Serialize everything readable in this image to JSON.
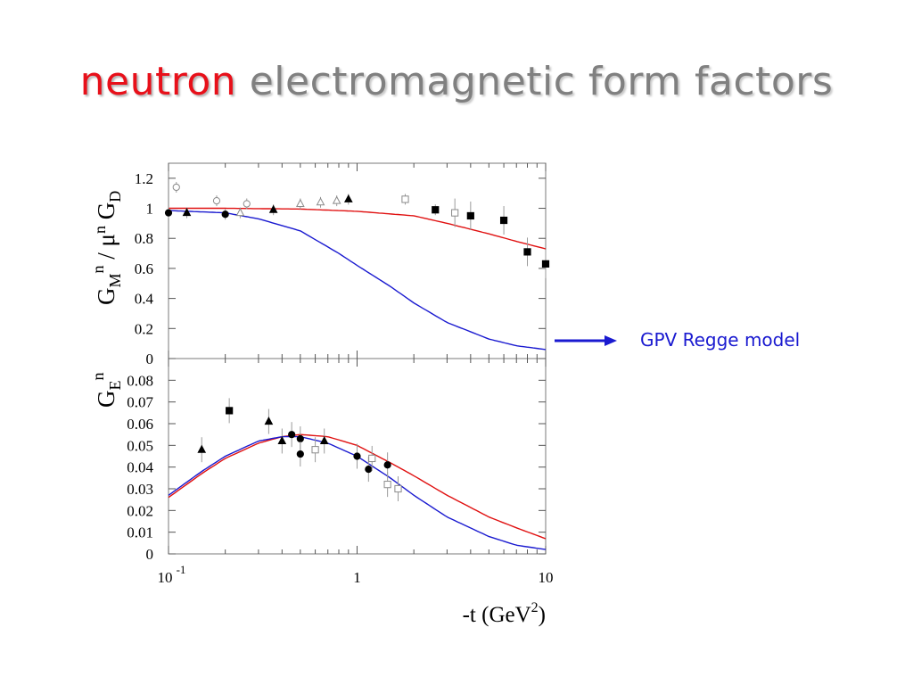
{
  "slide": {
    "title_word1": "neutron",
    "title_rest": "electromagnetic form factors",
    "legend_label": "GPV Regge model"
  },
  "colors": {
    "regge_red": "#e01010",
    "regge_blue": "#1a1ad0"
  },
  "chart_data": [
    {
      "type": "scatter",
      "panel": "top",
      "ylabel": "G_M^n / μ^n G_D",
      "xscale": "log",
      "xlim": [
        0.1,
        10
      ],
      "ylim": [
        0,
        1.3
      ],
      "yticks": [
        "0",
        "0.2",
        "0.4",
        "0.6",
        "0.8",
        "1",
        "1.2"
      ],
      "series": [
        {
          "marker": "filled-circle",
          "points": [
            [
              0.1,
              0.97
            ],
            [
              0.2,
              0.96
            ]
          ]
        },
        {
          "marker": "filled-triangle",
          "points": [
            [
              0.125,
              0.97
            ],
            [
              0.36,
              0.99
            ],
            [
              0.9,
              1.06
            ]
          ]
        },
        {
          "marker": "open-triangle",
          "points": [
            [
              0.24,
              0.97
            ],
            [
              0.5,
              1.03
            ],
            [
              0.64,
              1.04
            ],
            [
              0.78,
              1.05
            ]
          ]
        },
        {
          "marker": "open-circle",
          "points": [
            [
              0.11,
              1.14
            ],
            [
              0.18,
              1.05
            ],
            [
              0.26,
              1.03
            ]
          ]
        },
        {
          "marker": "open-square",
          "points": [
            [
              1.8,
              1.06
            ],
            [
              3.3,
              0.97
            ]
          ]
        },
        {
          "marker": "filled-square",
          "points": [
            [
              2.6,
              0.99
            ],
            [
              4.0,
              0.95
            ],
            [
              6.0,
              0.92
            ],
            [
              8.0,
              0.71
            ],
            [
              10.0,
              0.63
            ]
          ]
        }
      ],
      "curves": [
        {
          "color": "red",
          "points": [
            [
              0.1,
              1.0
            ],
            [
              0.2,
              1.0
            ],
            [
              0.5,
              0.995
            ],
            [
              1.0,
              0.98
            ],
            [
              2.0,
              0.95
            ],
            [
              3.0,
              0.9
            ],
            [
              5.0,
              0.83
            ],
            [
              7.0,
              0.78
            ],
            [
              10.0,
              0.73
            ]
          ]
        },
        {
          "color": "blue",
          "points": [
            [
              0.1,
              0.985
            ],
            [
              0.2,
              0.97
            ],
            [
              0.3,
              0.93
            ],
            [
              0.5,
              0.85
            ],
            [
              0.8,
              0.7
            ],
            [
              1.0,
              0.62
            ],
            [
              1.5,
              0.48
            ],
            [
              2.0,
              0.37
            ],
            [
              3.0,
              0.24
            ],
            [
              5.0,
              0.13
            ],
            [
              7.0,
              0.085
            ],
            [
              10.0,
              0.06
            ]
          ]
        }
      ]
    },
    {
      "type": "scatter",
      "panel": "bottom",
      "ylabel": "G_E^n",
      "xlabel": "-t (GeV²)",
      "xscale": "log",
      "xlim": [
        0.1,
        10
      ],
      "ylim": [
        0,
        0.09
      ],
      "yticks": [
        "0",
        "0.01",
        "0.02",
        "0.03",
        "0.04",
        "0.05",
        "0.06",
        "0.07",
        "0.08"
      ],
      "xticks": [
        {
          "value": 0.1,
          "label": "10",
          "exp": "-1"
        },
        {
          "value": 1,
          "label": "1",
          "exp": ""
        },
        {
          "value": 10,
          "label": "10",
          "exp": ""
        }
      ],
      "series": [
        {
          "marker": "filled-triangle",
          "points": [
            [
              0.15,
              0.048
            ],
            [
              0.34,
              0.061
            ],
            [
              0.4,
              0.052
            ],
            [
              0.67,
              0.052
            ]
          ]
        },
        {
          "marker": "filled-square",
          "points": [
            [
              0.21,
              0.066
            ]
          ]
        },
        {
          "marker": "filled-circle",
          "points": [
            [
              0.45,
              0.055
            ],
            [
              0.5,
              0.053
            ],
            [
              0.5,
              0.046
            ],
            [
              1.0,
              0.045
            ],
            [
              1.15,
              0.039
            ],
            [
              1.45,
              0.041
            ]
          ]
        },
        {
          "marker": "open-square",
          "points": [
            [
              0.6,
              0.048
            ],
            [
              1.2,
              0.044
            ],
            [
              1.45,
              0.032
            ],
            [
              1.65,
              0.03
            ]
          ]
        }
      ],
      "curves": [
        {
          "color": "red",
          "points": [
            [
              0.1,
              0.026
            ],
            [
              0.15,
              0.037
            ],
            [
              0.2,
              0.044
            ],
            [
              0.3,
              0.051
            ],
            [
              0.4,
              0.054
            ],
            [
              0.5,
              0.055
            ],
            [
              0.7,
              0.054
            ],
            [
              1.0,
              0.05
            ],
            [
              1.5,
              0.042
            ],
            [
              2.0,
              0.036
            ],
            [
              3.0,
              0.027
            ],
            [
              5.0,
              0.017
            ],
            [
              7.0,
              0.012
            ],
            [
              10.0,
              0.007
            ]
          ]
        },
        {
          "color": "blue",
          "points": [
            [
              0.1,
              0.027
            ],
            [
              0.15,
              0.038
            ],
            [
              0.2,
              0.045
            ],
            [
              0.3,
              0.052
            ],
            [
              0.4,
              0.054
            ],
            [
              0.5,
              0.054
            ],
            [
              0.7,
              0.051
            ],
            [
              1.0,
              0.045
            ],
            [
              1.5,
              0.035
            ],
            [
              2.0,
              0.027
            ],
            [
              3.0,
              0.017
            ],
            [
              5.0,
              0.008
            ],
            [
              7.0,
              0.004
            ],
            [
              10.0,
              0.002
            ]
          ]
        }
      ]
    }
  ]
}
